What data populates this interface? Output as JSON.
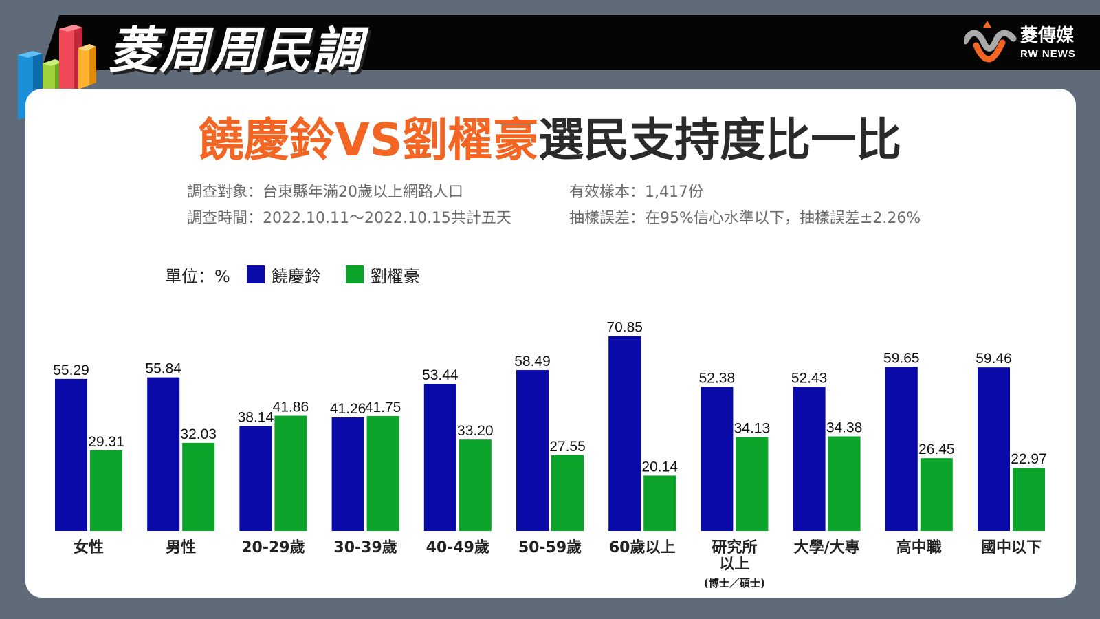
{
  "header": {
    "series_title": "菱周周民調",
    "brand_cn": "菱傳媒",
    "brand_en": "RW NEWS",
    "brand_icon": "rw-news-logo-icon",
    "bars_icon": "colored-bars-icon"
  },
  "main": {
    "title_part1": "饒慶鈴",
    "title_vs": "VS",
    "title_part2": "劉櫂豪",
    "title_rest": "選民支持度比一比"
  },
  "info": {
    "target": "調查對象：台東縣年滿20歲以上網路人口",
    "period": "調查時間：2022.10.11～2022.10.15共計五天",
    "sample": "有效樣本：1,417份",
    "error": "抽樣誤差：在95%信心水準以下，抽樣誤差±2.26%"
  },
  "legend": {
    "unit": "單位：%",
    "series1": "饒慶鈴",
    "series2": "劉櫂豪"
  },
  "colors": {
    "series1": "#0a0aa8",
    "series2": "#0ba32a",
    "highlight": "#f26522",
    "header_bg": "#050505",
    "page_bg": "#5f6b78"
  },
  "chart_data": {
    "type": "bar",
    "categories": [
      "女性",
      "男性",
      "20-29歲",
      "30-39歲",
      "40-49歲",
      "50-59歲",
      "60歲以上",
      "研究所\n以上",
      "大學/大專",
      "高中職",
      "國中以下"
    ],
    "category_notes": [
      "",
      "",
      "",
      "",
      "",
      "",
      "",
      "(博士／碩士)",
      "",
      "",
      ""
    ],
    "series": [
      {
        "name": "饒慶鈴",
        "values": [
          55.29,
          55.84,
          38.14,
          41.26,
          53.44,
          58.49,
          70.85,
          52.38,
          52.43,
          59.65,
          59.46
        ],
        "labels": [
          "55.29",
          "55.84",
          "38.14",
          "41.26",
          "53.44",
          "58.49",
          "70.85",
          "52.38",
          "52.43",
          "59.65",
          "59.46"
        ]
      },
      {
        "name": "劉櫂豪",
        "values": [
          29.31,
          32.03,
          41.86,
          41.75,
          33.2,
          27.55,
          20.14,
          34.13,
          34.38,
          26.45,
          22.97
        ],
        "labels": [
          "29.31",
          "32.03",
          "41.86",
          "41.75",
          "33.20",
          "27.55",
          "20.14",
          "34.13",
          "34.38",
          "26.45",
          "22.97"
        ]
      }
    ],
    "ylabel": "",
    "ylim": [
      0,
      72
    ],
    "grid": false,
    "legend_position": "top-left",
    "data_labels": true
  }
}
